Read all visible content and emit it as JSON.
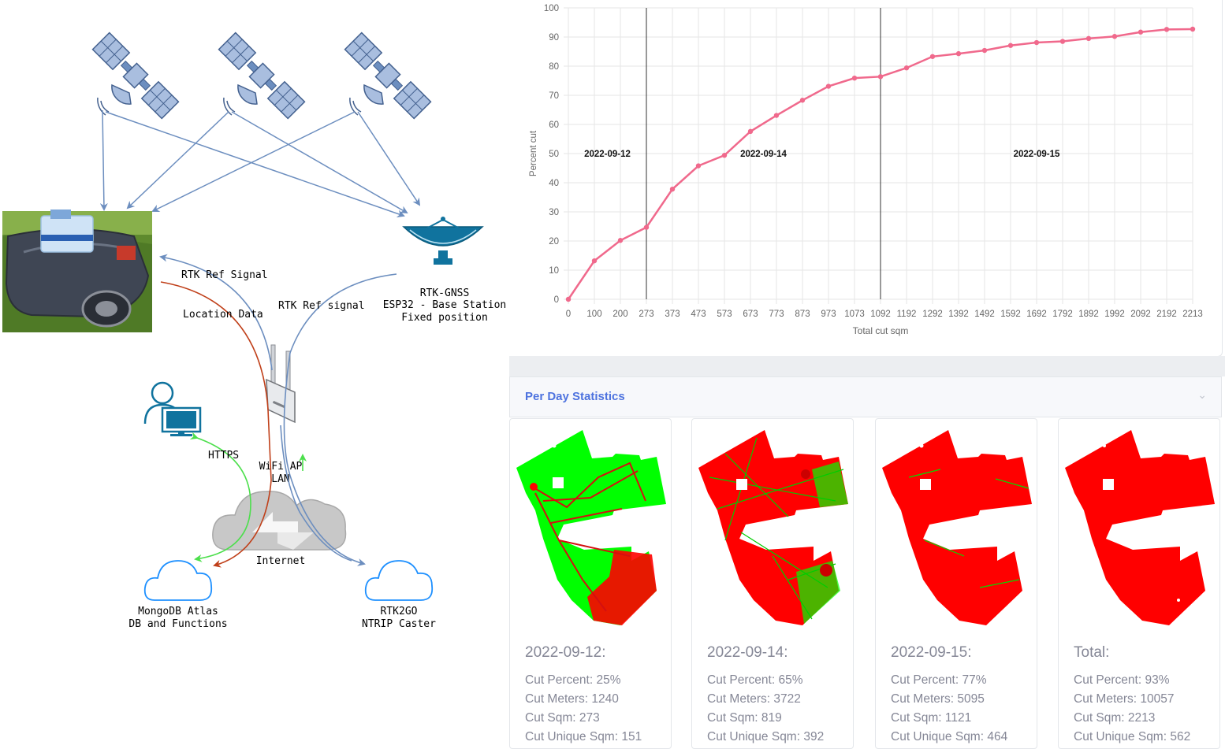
{
  "diagram": {
    "rtk_ref_signal_1": "RTK Ref Signal",
    "rtk_ref_signal_2": "RTK Ref signal",
    "location_data": "Location Data",
    "base_station": [
      "RTK-GNSS",
      "ESP32 - Base Station",
      "Fixed position"
    ],
    "wifi_ap": [
      "WiFi AP",
      "LAN"
    ],
    "https": "HTTPS",
    "internet": "Internet",
    "mongodb": [
      "MongoDB Atlas",
      "DB and Functions"
    ],
    "rtk2go": [
      "RTK2GO",
      "NTRIP Caster"
    ],
    "colors": {
      "arrow": "#6c8ebf",
      "location": "#c0401a",
      "https": "#4cdf4c",
      "icon": "#10739e"
    }
  },
  "chart_data": {
    "type": "line",
    "xlabel": "Total cut sqm",
    "ylabel": "Percent cut",
    "ylim": [
      0,
      100
    ],
    "yticks": [
      0,
      10,
      20,
      30,
      40,
      50,
      60,
      70,
      80,
      90,
      100
    ],
    "x_ticks": [
      "0",
      "100",
      "200",
      "273",
      "373",
      "473",
      "573",
      "673",
      "773",
      "873",
      "973",
      "1073",
      "1092",
      "1192",
      "1292",
      "1392",
      "1492",
      "1592",
      "1692",
      "1792",
      "1892",
      "1992",
      "2092",
      "2192",
      "2213"
    ],
    "values": [
      0,
      13.2,
      20.2,
      24.7,
      37.8,
      45.8,
      49.4,
      57.6,
      63.1,
      68.3,
      73.1,
      75.9,
      76.4,
      79.4,
      83.3,
      84.3,
      85.4,
      87.1,
      88.1,
      88.5,
      89.5,
      90.2,
      91.7,
      92.6,
      92.7
    ],
    "day_markers": [
      {
        "x_index": 3,
        "label": "2022-09-12",
        "label_at_index": 1.5
      },
      {
        "x_index": 12,
        "label": "2022-09-14",
        "label_at_index": 7.5
      },
      {
        "label": "2022-09-15",
        "label_at_index": 18
      }
    ],
    "line_color": "#f0698c",
    "grid": true,
    "legend": "none"
  },
  "stats": {
    "title": "Per Day Statistics",
    "cards": [
      {
        "title": "2022-09-12:",
        "lines": [
          "Cut Percent: 25%",
          "Cut Meters: 1240",
          "Cut Sqm: 273",
          "Cut Unique Sqm: 151"
        ]
      },
      {
        "title": "2022-09-14:",
        "lines": [
          "Cut Percent: 65%",
          "Cut Meters: 3722",
          "Cut Sqm: 819",
          "Cut Unique Sqm: 392"
        ]
      },
      {
        "title": "2022-09-15:",
        "lines": [
          "Cut Percent: 77%",
          "Cut Meters: 5095",
          "Cut Sqm: 1121",
          "Cut Unique Sqm: 464"
        ]
      },
      {
        "title": "Total:",
        "lines": [
          "Cut Percent: 93%",
          "Cut Meters: 10057",
          "Cut Sqm: 2213",
          "Cut Unique Sqm: 562"
        ]
      }
    ],
    "map_colors": {
      "lawn": "#00ff00",
      "cut": "#ff0000"
    }
  }
}
